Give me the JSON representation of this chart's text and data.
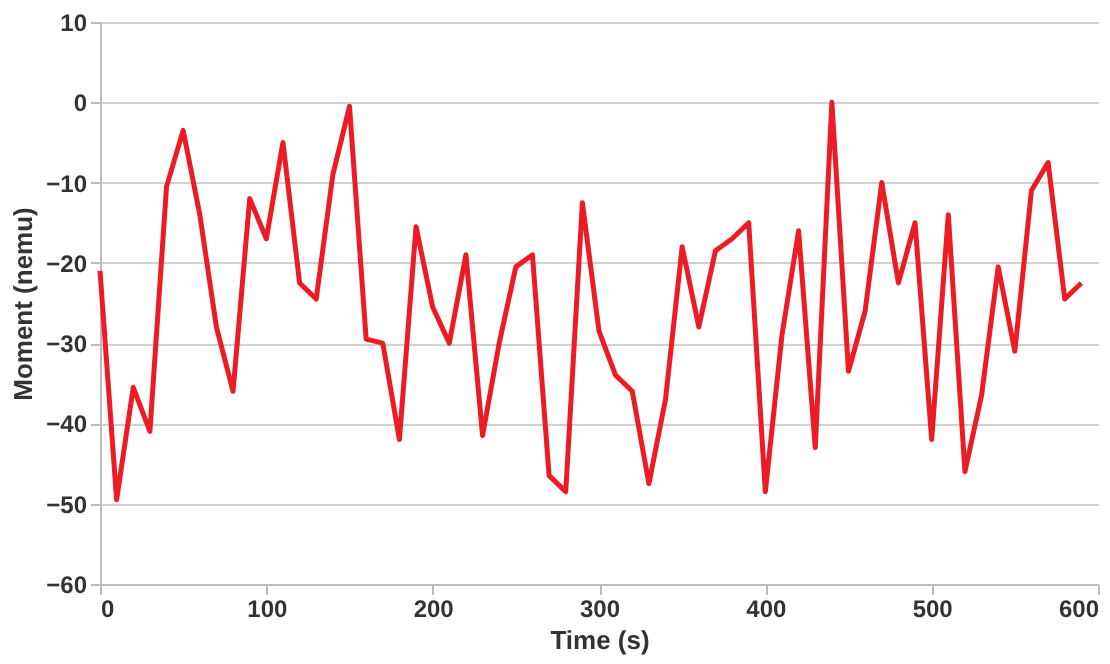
{
  "chart_data": {
    "type": "line",
    "xlabel": "Time (s)",
    "ylabel": "Moment (nemu)",
    "x": [
      0,
      10,
      20,
      30,
      40,
      50,
      60,
      70,
      80,
      90,
      100,
      110,
      120,
      130,
      140,
      150,
      160,
      170,
      180,
      190,
      200,
      210,
      220,
      230,
      240,
      250,
      260,
      270,
      280,
      290,
      300,
      310,
      320,
      330,
      340,
      350,
      360,
      370,
      380,
      390,
      400,
      410,
      420,
      430,
      440,
      450,
      460,
      470,
      480,
      490,
      500,
      510,
      520,
      530,
      540,
      550,
      560,
      570,
      580,
      590
    ],
    "series": [
      {
        "color": "#ed1c24",
        "values": [
          -21,
          -49.5,
          -35.5,
          -41,
          -10.5,
          -3.5,
          -14,
          -28,
          -36,
          -12,
          -17,
          -5,
          -22.5,
          -24.5,
          -9,
          -0.5,
          -29.5,
          -30,
          -42,
          -15.5,
          -25.5,
          -30,
          -19,
          -41.5,
          -30,
          -20.5,
          -19,
          -46.5,
          -48.5,
          -12.5,
          -28.5,
          -34,
          -36,
          -47.5,
          -37,
          -18,
          -28,
          -18.5,
          -17,
          -15,
          -48.5,
          -29,
          -16,
          -43,
          0,
          -33.5,
          -26,
          -10,
          -22.5,
          -15,
          -42,
          -14,
          -46,
          -36.5,
          -20.5,
          -31,
          -11,
          -7.5,
          -24.5,
          -22.5
        ]
      }
    ],
    "xlim": [
      0,
      600
    ],
    "xticks": [
      0,
      100,
      200,
      300,
      400,
      500,
      600
    ],
    "ylim": [
      -60,
      10
    ],
    "yticks": [
      -60,
      -50,
      -40,
      -30,
      -20,
      -10,
      0,
      10
    ],
    "grid": "y",
    "legend": false,
    "marker": "none",
    "line_style": "solid"
  }
}
